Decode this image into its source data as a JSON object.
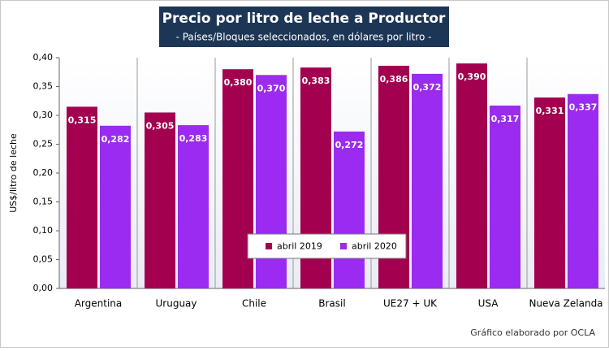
{
  "chart_data": {
    "type": "bar",
    "title": "Precio por litro de leche a Productor",
    "subtitle": "- Países/Bloques seleccionados, en dólares por litro -",
    "y_label": "US$/litro de leche",
    "source": "Gráfico elaborado por OCLA",
    "categories": [
      "Argentina",
      "Uruguay",
      "Chile",
      "Brasil",
      "UE27 + UK",
      "USA",
      "Nueva Zelanda"
    ],
    "series": [
      {
        "name": "abril 2019",
        "color": "#a3004f",
        "values": [
          0.315,
          0.305,
          0.38,
          0.383,
          0.386,
          0.39,
          0.331
        ],
        "value_labels": [
          "0,315",
          "0,305",
          "0,380",
          "0,383",
          "0,386",
          "0,390",
          "0,331"
        ]
      },
      {
        "name": "abril 2020",
        "color": "#9b2bf0",
        "values": [
          0.282,
          0.283,
          0.37,
          0.272,
          0.372,
          0.317,
          0.337
        ],
        "value_labels": [
          "0,282",
          "0,283",
          "0,370",
          "0,272",
          "0,372",
          "0,317",
          "0,337"
        ]
      }
    ],
    "ylim": [
      0,
      0.4
    ],
    "yticks": [
      {
        "value": 0,
        "label": "0,00"
      },
      {
        "value": 0.05,
        "label": "0,05"
      },
      {
        "value": 0.1,
        "label": "0,10"
      },
      {
        "value": 0.15,
        "label": "0,15"
      },
      {
        "value": 0.2,
        "label": "0,20"
      },
      {
        "value": 0.25,
        "label": "0,25"
      },
      {
        "value": 0.3,
        "label": "0,30"
      },
      {
        "value": 0.35,
        "label": "0,35"
      },
      {
        "value": 0.4,
        "label": "0,40"
      }
    ]
  }
}
